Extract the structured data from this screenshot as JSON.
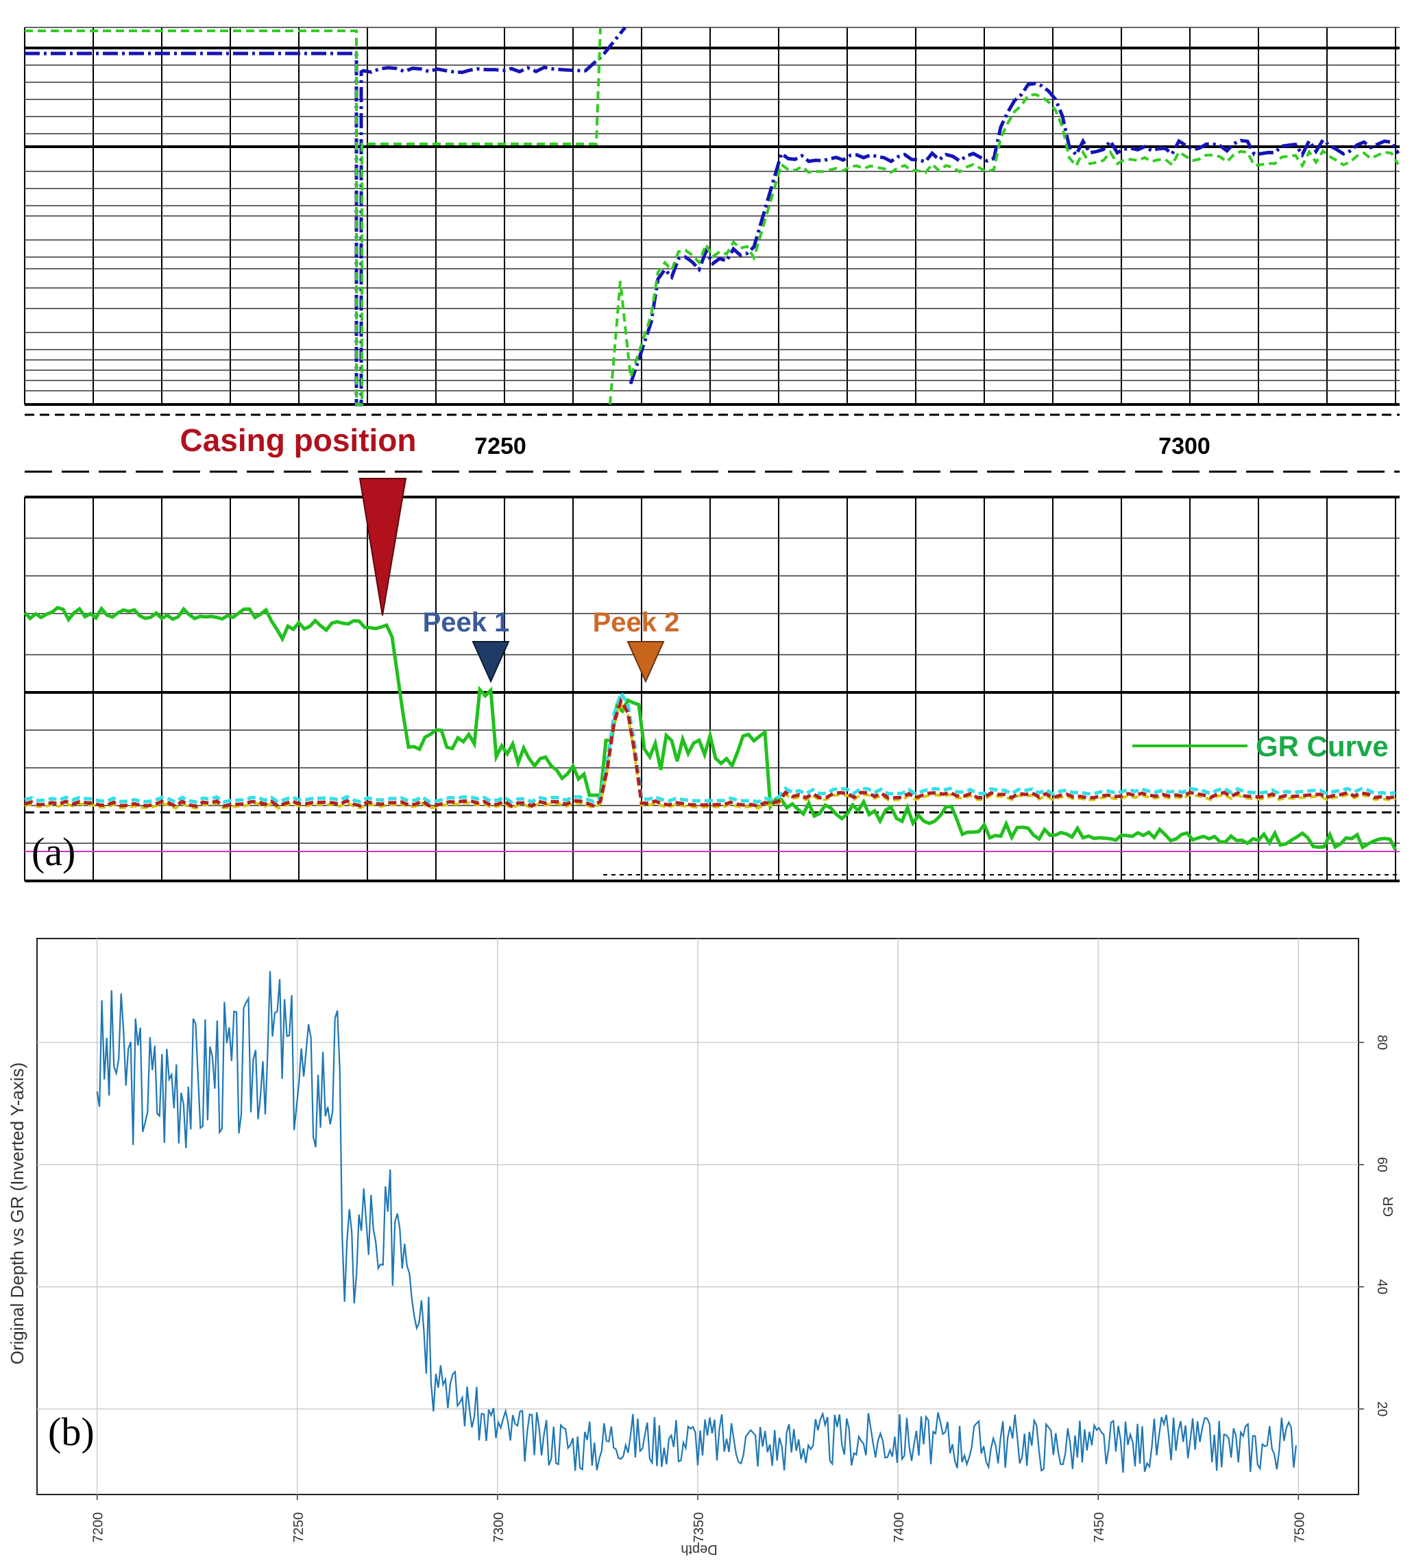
{
  "colors": {
    "grid_dark": "#000000",
    "grid_light": "#333333",
    "gr_green": "#22c01e",
    "blue_log": "#1414b4",
    "green_dash": "#33cc22",
    "casing_red": "#b0111c",
    "peak1_navy": "#1f3b66",
    "peak2_orange": "#c8651d",
    "peak1_text": "#3b5a9a",
    "peak2_text": "#cc6a2a",
    "gr_legend_text": "#1aaa48",
    "dashed_red": "#b22222",
    "dashed_cyan": "#33e0e8",
    "dashed_yellow": "#d8c800",
    "magenta_line": "#cc33cc",
    "series_blue": "#1f77b4",
    "gridline_b": "#cccccc"
  },
  "panel_a": {
    "label": "(a)",
    "depth_labels": [
      "7250",
      "7300"
    ],
    "annotations": {
      "casing": "Casing position",
      "peak1": "Peek 1",
      "peak2": "Peek 2",
      "legend": "GR Curve"
    },
    "icons": {
      "casing_marker": "down-triangle-icon",
      "peak1_marker": "down-triangle-icon",
      "peak2_marker": "down-triangle-icon"
    },
    "chart_data": {
      "type": "line",
      "depth_range": [
        7200,
        7330
      ],
      "series": [
        {
          "name": "GR Curve"
        }
      ]
    }
  },
  "chart_data": {
    "type": "line",
    "label": "(b)",
    "title": "",
    "xlabel": "Depth",
    "ylabel": "GR",
    "left_label": "Original Depth vs GR (Inverted Y-axis)",
    "xlim": [
      7185,
      7515
    ],
    "ylim": [
      6,
      97
    ],
    "xticks": [
      7200,
      7250,
      7300,
      7350,
      7400,
      7450,
      7500
    ],
    "yticks": [
      20,
      40,
      60,
      80
    ],
    "grid": true,
    "x": [
      7200,
      7205,
      7210,
      7215,
      7220,
      7225,
      7230,
      7235,
      7240,
      7245,
      7250,
      7255,
      7258,
      7260,
      7262,
      7265,
      7268,
      7270,
      7272,
      7275,
      7278,
      7280,
      7283,
      7285,
      7288,
      7290,
      7295,
      7300,
      7305,
      7310,
      7315,
      7320,
      7325,
      7330,
      7335,
      7340,
      7350,
      7360,
      7370,
      7380,
      7390,
      7400,
      7410,
      7420,
      7430,
      7440,
      7450,
      7460,
      7470,
      7480,
      7490,
      7500
    ],
    "values": [
      76,
      78,
      74,
      72,
      75,
      73,
      77,
      74,
      78,
      82,
      75,
      72,
      74,
      76,
      40,
      48,
      52,
      38,
      45,
      55,
      50,
      42,
      35,
      28,
      24,
      22,
      19,
      17,
      16,
      15,
      15,
      14,
      14,
      16,
      15,
      15,
      15,
      15,
      14,
      15,
      15,
      15,
      15,
      14,
      15,
      14,
      14,
      14,
      15,
      14,
      14,
      15
    ]
  }
}
